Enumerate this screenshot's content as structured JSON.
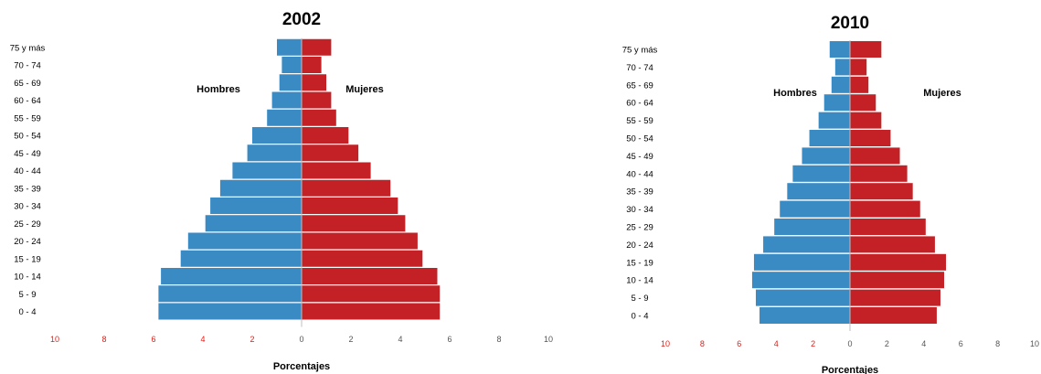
{
  "chart_data": [
    {
      "type": "bar",
      "orientation": "horizontal",
      "layout": "population-pyramid",
      "title": "2002",
      "xlabel": "Porcentajes",
      "categories": [
        "0 - 4",
        "5 - 9",
        "10 - 14",
        "15 - 19",
        "20 - 24",
        "25 - 29",
        "30 - 34",
        "35 - 39",
        "40 - 44",
        "45 - 49",
        "50 - 54",
        "55 - 59",
        "60 - 64",
        "65 - 69",
        "70 - 74",
        "75 y más"
      ],
      "series": [
        {
          "name": "Hombres",
          "color": "#3a8ac4",
          "side": "left",
          "values": [
            5.8,
            5.8,
            5.7,
            4.9,
            4.6,
            3.9,
            3.7,
            3.3,
            2.8,
            2.2,
            2.0,
            1.4,
            1.2,
            0.9,
            0.8,
            1.0
          ]
        },
        {
          "name": "Mujeres",
          "color": "#c42126",
          "side": "right",
          "values": [
            5.6,
            5.6,
            5.5,
            4.9,
            4.7,
            4.2,
            3.9,
            3.6,
            2.8,
            2.3,
            1.9,
            1.4,
            1.2,
            1.0,
            0.8,
            1.2
          ]
        }
      ],
      "xlim": [
        -10,
        10
      ],
      "xticks": [
        "10",
        "8",
        "6",
        "4",
        "2",
        "0",
        "2",
        "4",
        "6",
        "8",
        "10"
      ],
      "tick_colors": {
        "left": "#e0201a",
        "right": "#555555"
      }
    },
    {
      "type": "bar",
      "orientation": "horizontal",
      "layout": "population-pyramid",
      "title": "2010",
      "xlabel": "Porcentajes",
      "categories": [
        "0 - 4",
        "5 - 9",
        "10 - 14",
        "15 - 19",
        "20 - 24",
        "25 - 29",
        "30 - 34",
        "35 - 39",
        "40 - 44",
        "45 - 49",
        "50 - 54",
        "55 - 59",
        "60 - 64",
        "65 - 69",
        "70 - 74",
        "75 y más"
      ],
      "series": [
        {
          "name": "Hombres",
          "color": "#3a8ac4",
          "side": "left",
          "values": [
            4.9,
            5.1,
            5.3,
            5.2,
            4.7,
            4.1,
            3.8,
            3.4,
            3.1,
            2.6,
            2.2,
            1.7,
            1.4,
            1.0,
            0.8,
            1.1
          ]
        },
        {
          "name": "Mujeres",
          "color": "#c42126",
          "side": "right",
          "values": [
            4.7,
            4.9,
            5.1,
            5.2,
            4.6,
            4.1,
            3.8,
            3.4,
            3.1,
            2.7,
            2.2,
            1.7,
            1.4,
            1.0,
            0.9,
            1.7
          ]
        }
      ],
      "xlim": [
        -10,
        10
      ],
      "xticks": [
        "10",
        "8",
        "6",
        "4",
        "2",
        "0",
        "2",
        "4",
        "6",
        "8",
        "10"
      ],
      "tick_colors": {
        "left": "#e0201a",
        "right": "#555555"
      }
    }
  ]
}
